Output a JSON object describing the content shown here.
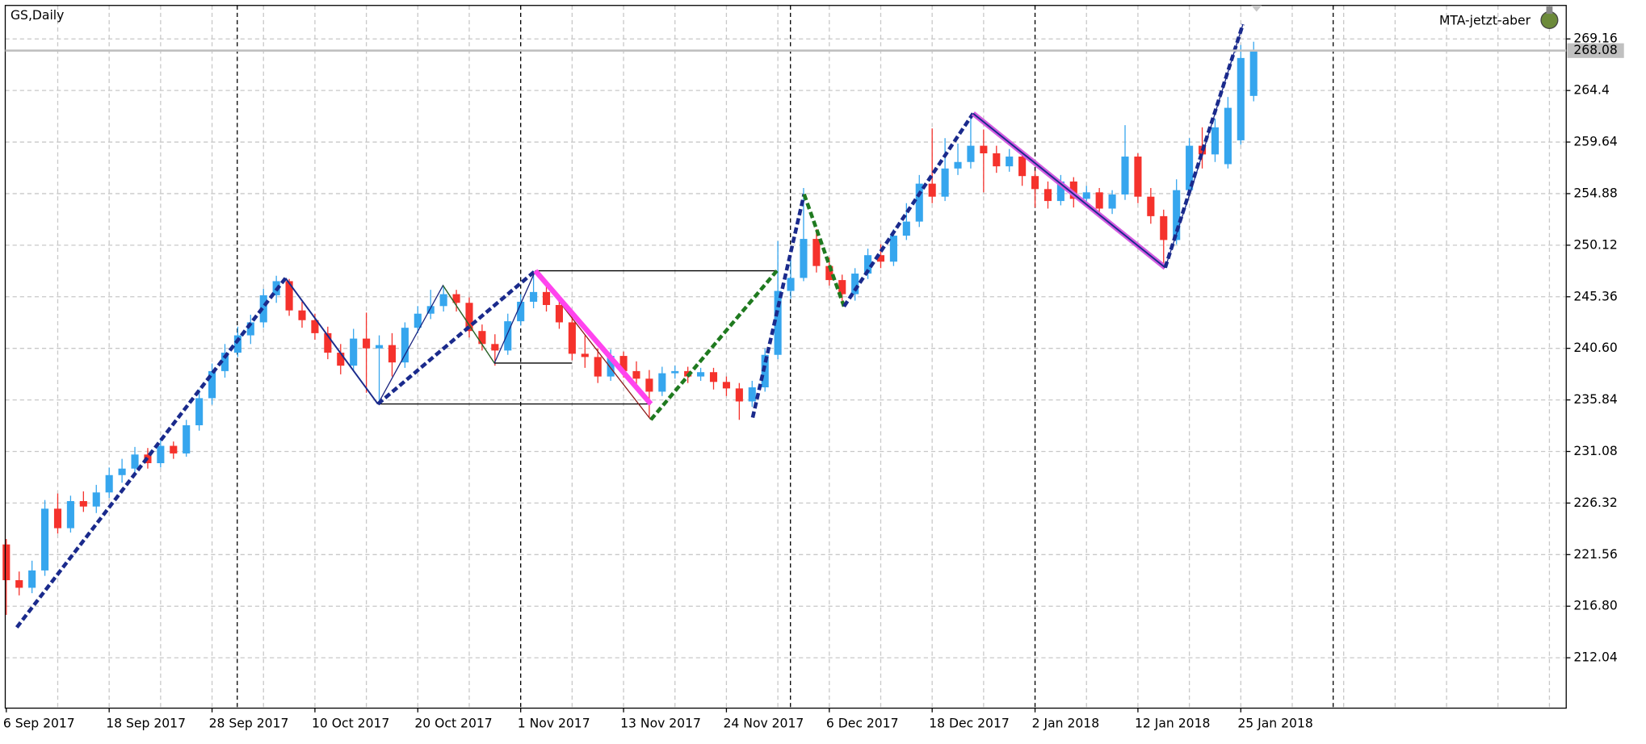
{
  "chart_data": {
    "type": "candlestick",
    "title": "GS,Daily",
    "label": "MTA-jetzt-aber",
    "bull_color": "#36a6ee",
    "bear_color": "#f5322c",
    "grid": true,
    "ylim": [
      207.39,
      272.25
    ],
    "yticks": [
      212.04,
      {
        "value": 216.8,
        "label": "216.80"
      },
      221.56,
      226.32,
      231.08,
      235.84,
      {
        "value": 240.6,
        "label": "240.60"
      },
      245.36,
      250.12,
      254.88,
      259.64,
      264.4,
      269.16
    ],
    "categories": [
      "6 Sep 2017",
      null,
      null,
      null,
      null,
      null,
      null,
      null,
      "18 Sep 2017",
      null,
      null,
      null,
      null,
      null,
      null,
      null,
      "28 Sep 2017",
      null,
      null,
      null,
      null,
      null,
      null,
      null,
      "10 Oct 2017",
      null,
      null,
      null,
      null,
      null,
      null,
      null,
      "20 Oct 2017",
      null,
      null,
      null,
      null,
      null,
      null,
      null,
      "1 Nov 2017",
      null,
      null,
      null,
      null,
      null,
      null,
      null,
      "13 Nov 2017",
      null,
      null,
      null,
      null,
      null,
      null,
      null,
      "24 Nov 2017",
      null,
      null,
      null,
      null,
      null,
      null,
      null,
      "6 Dec 2017",
      null,
      null,
      null,
      null,
      null,
      null,
      null,
      "18 Dec 2017",
      null,
      null,
      null,
      null,
      null,
      null,
      null,
      "2 Jan 2018",
      null,
      null,
      null,
      null,
      null,
      null,
      null,
      "12 Jan 2018",
      null,
      null,
      null,
      null,
      null,
      null,
      null,
      "25 Jan 2018",
      null
    ],
    "open": [
      222.5,
      219.2,
      218.5,
      220.1,
      225.8,
      224.0,
      226.5,
      226.0,
      227.3,
      228.9,
      229.5,
      230.8,
      230.0,
      231.6,
      230.9,
      233.5,
      236.0,
      238.5,
      240.2,
      241.8,
      243.0,
      245.5,
      246.8,
      244.1,
      243.2,
      242.0,
      240.2,
      239.0,
      241.5,
      240.6,
      240.9,
      239.3,
      242.5,
      243.8,
      244.5,
      245.6,
      244.8,
      242.2,
      241.0,
      240.4,
      243.1,
      244.9,
      245.8,
      244.6,
      243.0,
      240.1,
      239.8,
      238.0,
      239.9,
      238.5,
      237.8,
      236.6,
      238.3,
      238.5,
      238.0,
      238.4,
      237.5,
      236.9,
      235.7,
      237.0,
      240.0,
      245.9,
      247.1,
      250.7,
      248.2,
      246.9,
      245.6,
      247.5,
      249.2,
      248.6,
      251.0,
      252.3,
      255.8,
      254.6,
      257.2,
      257.8,
      259.3,
      258.6,
      257.4,
      258.3,
      256.5,
      255.3,
      254.2,
      256.0,
      254.4,
      255.0,
      253.5,
      254.8,
      258.3,
      254.6,
      252.8,
      250.6,
      255.2,
      259.3,
      258.5,
      257.6,
      259.8,
      263.9
    ],
    "high": [
      223.0,
      220.0,
      221.0,
      226.6,
      227.2,
      227.0,
      227.4,
      228.0,
      229.6,
      230.4,
      231.5,
      231.4,
      232.3,
      232.0,
      234.0,
      236.8,
      239.2,
      241.0,
      242.6,
      243.7,
      246.1,
      247.3,
      247.0,
      244.9,
      243.8,
      242.6,
      241.0,
      242.4,
      243.9,
      241.8,
      242.0,
      243.0,
      244.5,
      246.0,
      246.3,
      246.0,
      245.3,
      242.8,
      241.9,
      243.8,
      245.6,
      247.6,
      246.4,
      245.2,
      243.6,
      241.8,
      240.6,
      240.5,
      240.3,
      239.4,
      238.6,
      238.9,
      239.0,
      238.9,
      238.8,
      238.8,
      238.0,
      237.4,
      237.6,
      240.6,
      250.5,
      248.8,
      255.4,
      251.6,
      249.0,
      247.4,
      248.0,
      249.8,
      250.2,
      251.6,
      254.0,
      256.6,
      260.9,
      260.0,
      259.5,
      262.0,
      260.8,
      259.3,
      259.0,
      258.8,
      257.0,
      256.0,
      256.6,
      256.4,
      255.6,
      255.4,
      255.2,
      261.2,
      258.6,
      255.4,
      253.4,
      256.2,
      260.0,
      261.0,
      261.8,
      263.8,
      268.6,
      268.9
    ],
    "low": [
      216.0,
      217.8,
      218.0,
      219.6,
      223.5,
      223.6,
      225.5,
      225.4,
      226.8,
      228.2,
      229.0,
      229.5,
      229.6,
      230.4,
      230.6,
      233.0,
      235.4,
      237.9,
      239.8,
      241.0,
      242.5,
      244.8,
      243.6,
      242.5,
      241.4,
      239.6,
      238.2,
      238.6,
      236.5,
      235.6,
      238.0,
      238.8,
      242.0,
      243.3,
      244.0,
      244.0,
      241.6,
      240.4,
      239.0,
      240.0,
      242.7,
      244.3,
      244.0,
      242.4,
      239.5,
      238.8,
      237.4,
      237.6,
      237.9,
      237.0,
      234.2,
      236.2,
      237.8,
      237.4,
      237.6,
      236.8,
      236.2,
      234.0,
      235.2,
      236.6,
      239.6,
      245.2,
      246.8,
      247.6,
      246.4,
      244.8,
      245.0,
      247.0,
      248.0,
      248.2,
      250.6,
      251.8,
      254.0,
      254.2,
      256.6,
      257.2,
      255.0,
      256.8,
      256.9,
      255.6,
      253.6,
      253.5,
      253.8,
      253.6,
      253.9,
      252.8,
      253.0,
      254.3,
      254.0,
      252.1,
      248.0,
      250.2,
      254.8,
      257.2,
      257.8,
      257.2,
      259.4,
      263.4
    ],
    "close": [
      219.2,
      218.5,
      220.1,
      225.8,
      224.0,
      226.5,
      226.0,
      227.3,
      228.9,
      229.5,
      230.8,
      230.0,
      231.6,
      230.9,
      233.5,
      236.0,
      238.5,
      240.2,
      241.8,
      243.0,
      245.5,
      246.8,
      244.1,
      243.2,
      242.0,
      240.2,
      239.0,
      241.5,
      240.6,
      240.9,
      239.3,
      242.5,
      243.8,
      244.5,
      245.6,
      244.8,
      242.2,
      241.0,
      240.4,
      243.1,
      244.9,
      245.8,
      244.6,
      243.0,
      240.1,
      239.8,
      238.0,
      239.9,
      238.5,
      237.8,
      236.6,
      238.3,
      238.5,
      238.0,
      238.4,
      237.5,
      236.9,
      235.7,
      237.0,
      240.0,
      245.9,
      247.1,
      250.7,
      248.2,
      246.9,
      245.6,
      247.5,
      249.2,
      248.6,
      251.0,
      252.3,
      255.8,
      254.6,
      257.2,
      257.8,
      259.3,
      258.6,
      257.4,
      258.3,
      256.5,
      255.3,
      254.2,
      256.0,
      254.4,
      255.0,
      253.5,
      254.8,
      258.3,
      254.6,
      252.8,
      250.6,
      255.2,
      259.3,
      258.5,
      261.0,
      262.8,
      267.4,
      268.08
    ]
  }
}
